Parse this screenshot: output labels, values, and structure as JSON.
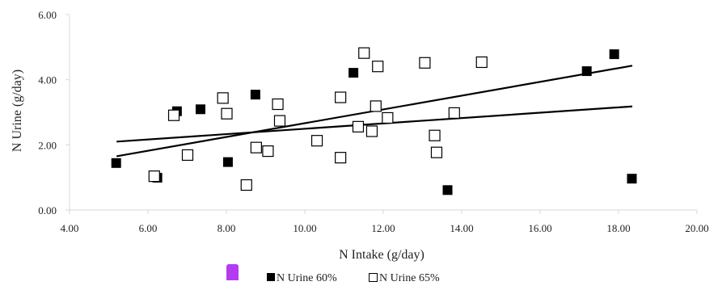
{
  "chart_data": {
    "type": "scatter",
    "title": "",
    "xlabel": "N Intake  (g/day)",
    "ylabel": "N Urine (g/day)",
    "xlim": [
      4.0,
      20.0
    ],
    "ylim": [
      0.0,
      6.0
    ],
    "x_ticks": [
      4,
      6,
      8,
      10,
      12,
      14,
      16,
      18,
      20
    ],
    "y_ticks": [
      0,
      2,
      4,
      6
    ],
    "x_tick_labels": [
      "4.00",
      "6.00",
      "8.00",
      "10.00",
      "12.00",
      "14.00",
      "16.00",
      "18.00",
      "20.00"
    ],
    "y_tick_labels": [
      "0.00",
      "2.00",
      "4.00",
      "6.00"
    ],
    "grid": false,
    "legend_position": "bottom",
    "series": [
      {
        "name": "N Urine 60%",
        "marker": "filled-square",
        "color": "#000000",
        "points": [
          [
            5.2,
            1.43
          ],
          [
            6.25,
            0.98
          ],
          [
            6.75,
            3.02
          ],
          [
            7.35,
            3.08
          ],
          [
            8.05,
            1.46
          ],
          [
            8.75,
            3.53
          ],
          [
            11.25,
            4.2
          ],
          [
            13.65,
            0.6
          ],
          [
            17.2,
            4.25
          ],
          [
            17.9,
            4.77
          ],
          [
            18.35,
            0.95
          ]
        ],
        "trendline": [
          [
            5.2,
            2.1
          ],
          [
            18.35,
            3.18
          ]
        ]
      },
      {
        "name": "N Urine 65%",
        "marker": "open-square",
        "color": "#000000",
        "points": [
          [
            6.15,
            1.05
          ],
          [
            6.65,
            2.92
          ],
          [
            7.0,
            1.7
          ],
          [
            7.9,
            3.45
          ],
          [
            8.0,
            2.97
          ],
          [
            8.5,
            0.78
          ],
          [
            8.75,
            1.93
          ],
          [
            9.05,
            1.82
          ],
          [
            9.3,
            3.26
          ],
          [
            9.35,
            2.75
          ],
          [
            10.3,
            2.14
          ],
          [
            10.9,
            3.47
          ],
          [
            10.9,
            1.62
          ],
          [
            11.35,
            2.57
          ],
          [
            11.5,
            4.83
          ],
          [
            11.7,
            2.43
          ],
          [
            11.8,
            3.2
          ],
          [
            11.85,
            4.42
          ],
          [
            12.1,
            2.84
          ],
          [
            13.05,
            4.53
          ],
          [
            13.3,
            2.3
          ],
          [
            13.35,
            1.78
          ],
          [
            13.8,
            2.99
          ],
          [
            14.5,
            4.55
          ]
        ],
        "trendline": [
          [
            5.2,
            1.65
          ],
          [
            18.35,
            4.43
          ]
        ]
      }
    ]
  },
  "legend": {
    "items": [
      {
        "label": "N Urine 60%",
        "marker": "filled-square"
      },
      {
        "label": "N Urine 65%",
        "marker": "open-square"
      }
    ]
  },
  "colors": {
    "marker": "#000000",
    "axis": "#d9d9d9",
    "text": "#222222",
    "stray_mark": "#b43cf0"
  }
}
